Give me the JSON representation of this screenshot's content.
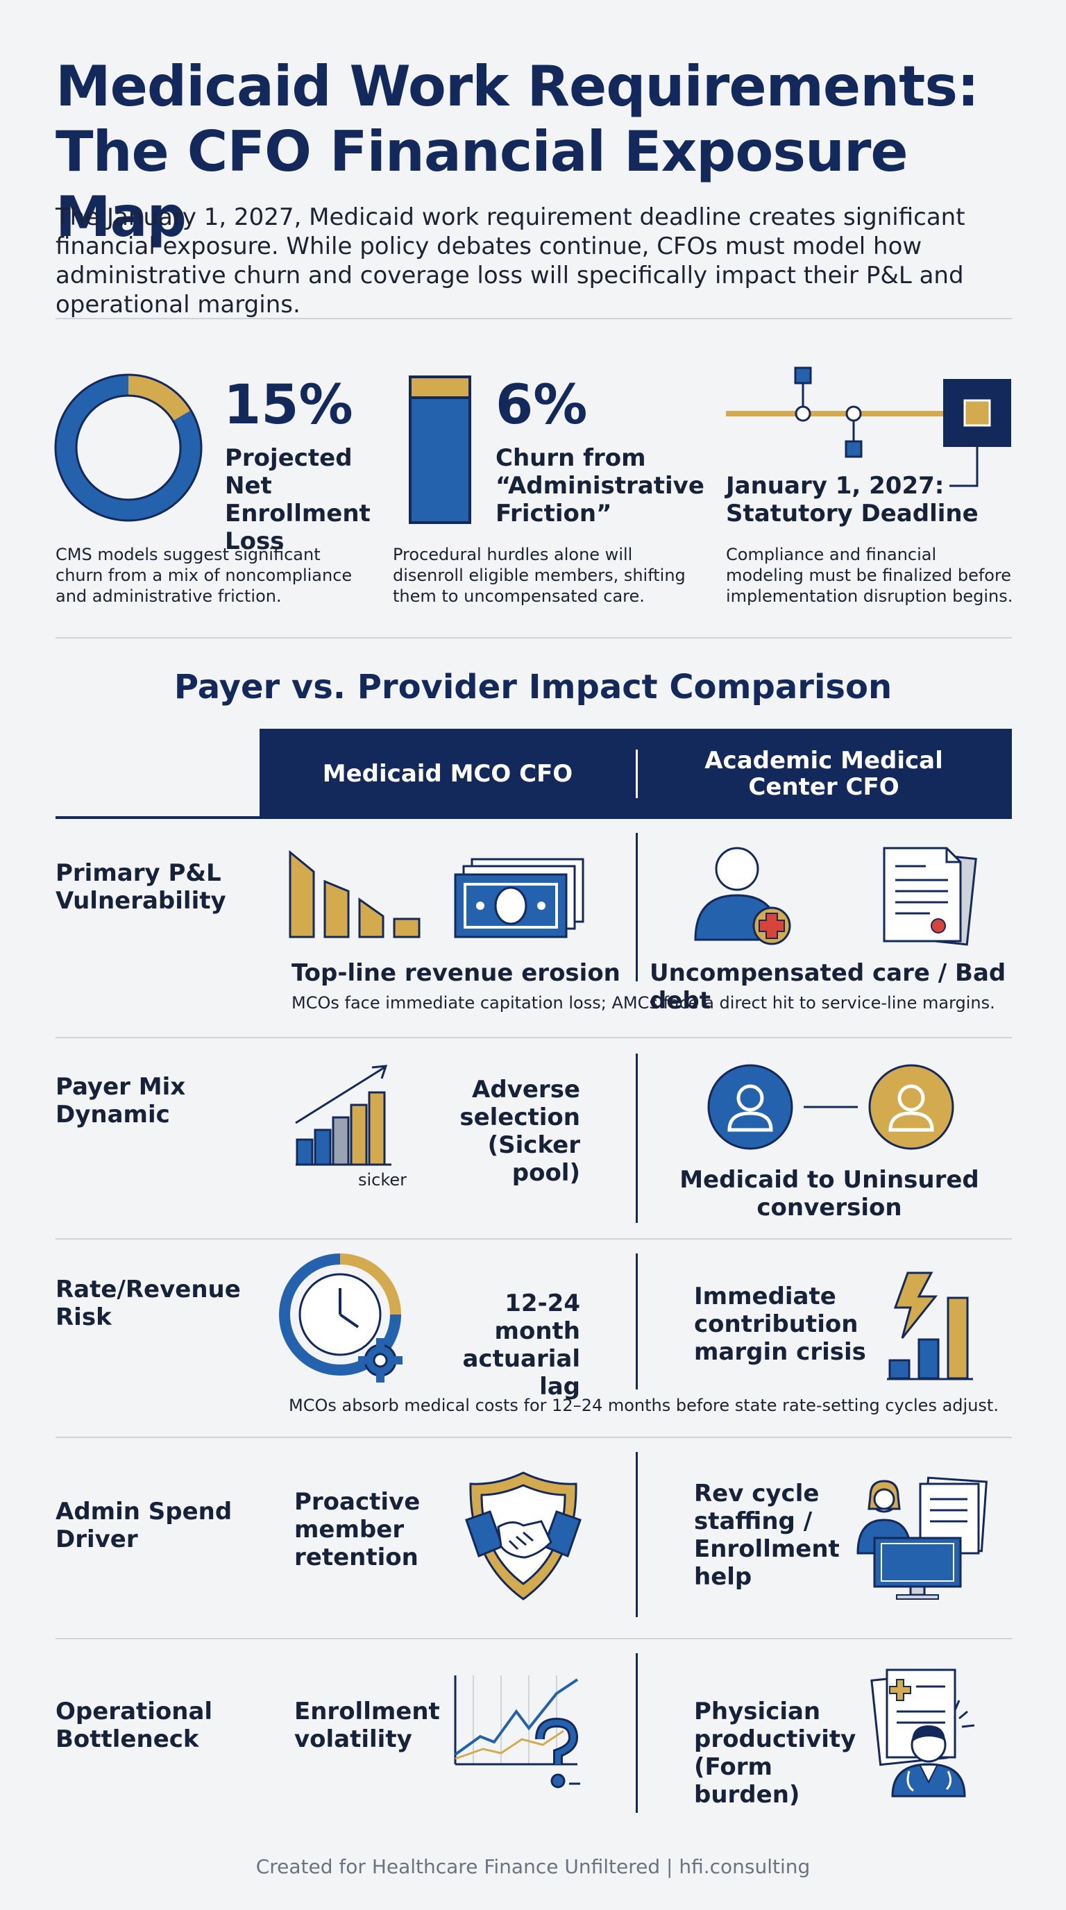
{
  "header": {
    "title_line1": "Medicaid Work Requirements:",
    "title_line2": "The CFO Financial Exposure Map",
    "intro": "The January 1, 2027, Medicaid work requirement deadline creates significant financial exposure. While policy debates continue, CFOs must model how administrative churn and coverage loss will specifically impact their P&L and operational margins."
  },
  "stats": [
    {
      "value": "15%",
      "label": "Projected Net Enrollment Loss",
      "description": "CMS models suggest significant churn from a mix of noncompliance and administrative friction.",
      "icon": "donut-chart-icon",
      "donut_fraction": 0.15
    },
    {
      "value": "6%",
      "label": "Churn from “Administrative Friction”",
      "description": "Procedural hurdles alone will disenroll eligible members, shifting them to uncompensated care.",
      "icon": "stacked-bar-icon",
      "bar_fraction": 0.06
    },
    {
      "value": "",
      "label": "January 1, 2027: Statutory Deadline",
      "description": "Compliance and financial modeling must be finalized before implementation disruption begins.",
      "icon": "timeline-icon"
    }
  ],
  "comparison": {
    "title": "Payer vs. Provider Impact Comparison",
    "columns": [
      "Medicaid MCO CFO",
      "Academic Medical Center CFO"
    ],
    "rows": [
      {
        "label": "Primary P&L Vulnerability",
        "mco": "Top-line revenue erosion",
        "amc": "Uncompensated care / Bad debt",
        "note": "MCOs face immediate capitation loss; AMCs face a direct hit to service-line margins.",
        "mco_icons": [
          "declining-bars-icon",
          "cash-bill-icon"
        ],
        "amc_icons": [
          "patient-plus-icon",
          "medical-bill-icon"
        ]
      },
      {
        "label": "Payer Mix Dynamic",
        "mco": "Adverse selection (Sicker pool)",
        "mco_icon_caption": "sicker",
        "amc": "Medicaid to Uninsured conversion",
        "mco_icons": [
          "rising-risk-chart-icon"
        ],
        "amc_icons": [
          "person-icon",
          "person-icon"
        ]
      },
      {
        "label": "Rate/Revenue Risk",
        "mco": "12-24 month actuarial lag",
        "amc": "Immediate contribution margin crisis",
        "note": "MCOs absorb medical costs for 12–24 months before state rate-setting cycles adjust.",
        "mco_icons": [
          "clock-gear-icon"
        ],
        "amc_icons": [
          "lightning-bars-icon"
        ]
      },
      {
        "label": "Admin Spend Driver",
        "mco": "Proactive member retention",
        "amc": "Rev cycle staffing / Enrollment help",
        "mco_icons": [
          "handshake-shield-icon"
        ],
        "amc_icons": [
          "staff-computer-icon"
        ]
      },
      {
        "label": "Operational Bottleneck",
        "mco": "Enrollment volatility",
        "amc": "Physician productivity (Form burden)",
        "mco_icons": [
          "volatile-chart-question-icon"
        ],
        "amc_icons": [
          "physician-forms-icon"
        ]
      }
    ]
  },
  "footer": "Created for Healthcare Finance Unfiltered | hfi.consulting",
  "colors": {
    "navy": "#13295b",
    "blue": "#2462ad",
    "gold": "#d4aa4f",
    "red": "#d9443a",
    "gray": "#cfd3da"
  }
}
